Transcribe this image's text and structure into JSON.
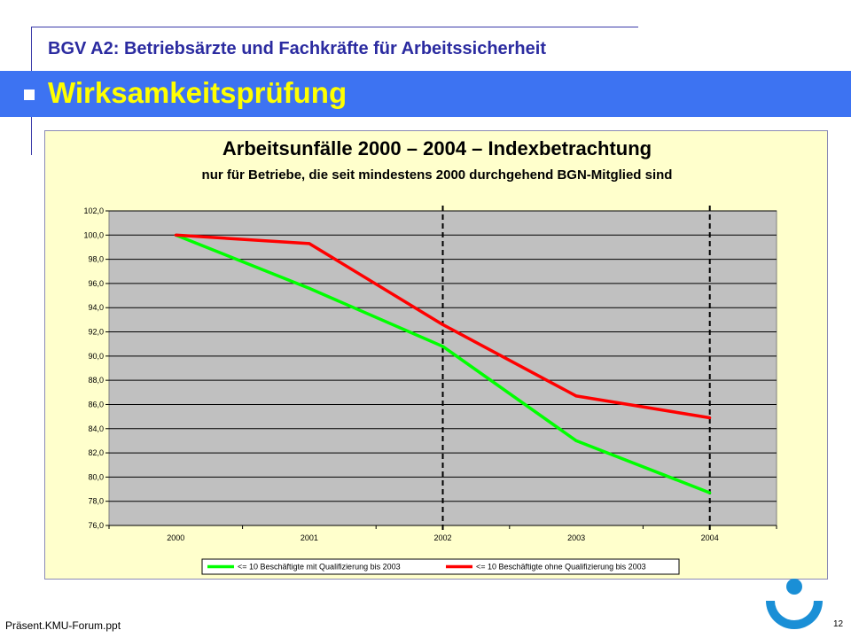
{
  "header": {
    "title": "BGV A2: Betriebsärzte und Fachkräfte für Arbeitssicherheit",
    "section_title": "Wirksamkeitsprüfung"
  },
  "colors": {
    "band": "#3d73f2",
    "section_title": "#ffff00",
    "header_title": "#2b2ba0",
    "chart_background": "#ffffcc",
    "plot_background": "#c0c0c0"
  },
  "chart_data": {
    "type": "line",
    "title": "Arbeitsunfälle 2000 – 2004   –   Indexbetrachtung",
    "subtitle": "nur für Betriebe, die seit mindestens 2000 durchgehend BGN-Mitglied sind",
    "categories": [
      "2000",
      "2001",
      "2002",
      "2003",
      "2004"
    ],
    "ylim": [
      76,
      102
    ],
    "yticks": [
      "76,0",
      "78,0",
      "80,0",
      "82,0",
      "84,0",
      "86,0",
      "88,0",
      "90,0",
      "92,0",
      "94,0",
      "96,0",
      "98,0",
      "100,0",
      "102,0"
    ],
    "grid": true,
    "legend_position": "bottom",
    "markers": [
      "2002",
      "2004"
    ],
    "series": [
      {
        "name": "<= 10 Beschäftigte mit Qualifizierung bis 2003",
        "color": "#00ff00",
        "values": [
          100.0,
          95.6,
          90.8,
          83.0,
          78.7
        ]
      },
      {
        "name": "<= 10 Beschäftigte ohne Qualifizierung bis 2003",
        "color": "#ff0000",
        "values": [
          100.0,
          99.3,
          92.6,
          86.7,
          84.9
        ]
      }
    ]
  },
  "footer": {
    "filename": "Präsent.KMU-Forum.ppt",
    "page_number": "12"
  }
}
